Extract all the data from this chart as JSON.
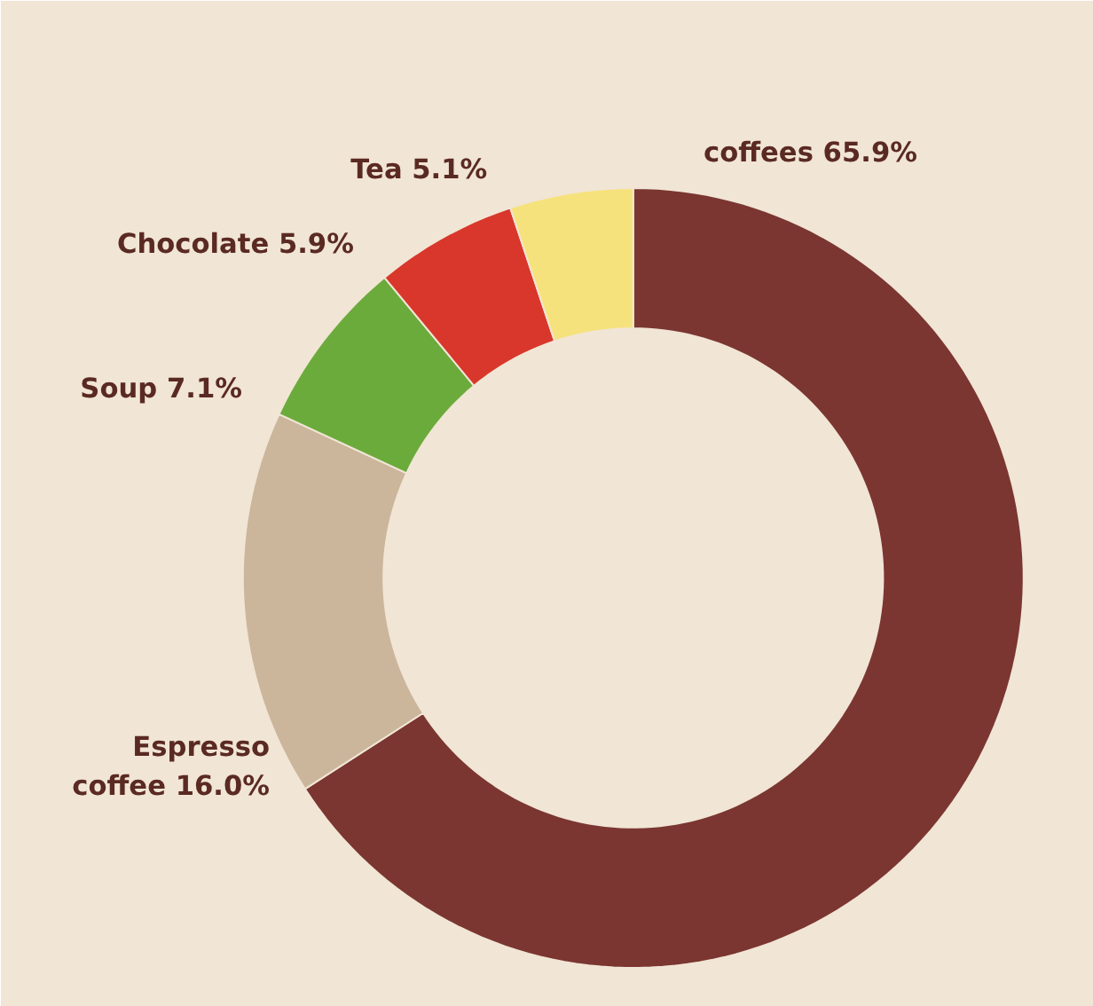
{
  "chart_data": {
    "type": "donut",
    "categories": [
      "coffees",
      "Espresso coffee",
      "Soup",
      "Chocolate",
      "Tea"
    ],
    "values": [
      65.9,
      16.0,
      7.1,
      5.9,
      5.1
    ],
    "colors": [
      "#7b3631",
      "#cbb69b",
      "#6bab3c",
      "#d9372b",
      "#f6e27c"
    ],
    "value_labels": [
      "65.9%",
      "16.0%",
      "7.1%",
      "5.9%",
      "5.1%"
    ],
    "legend": false
  }
}
